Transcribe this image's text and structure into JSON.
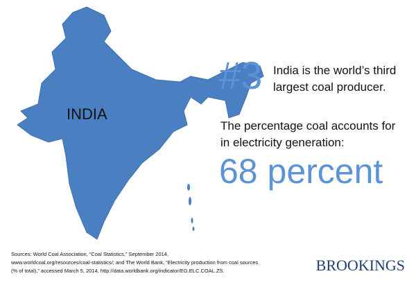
{
  "map_label": "INDIA",
  "rank": "#3",
  "rank_text": [
    "India is the world’s third",
    "largest coal producer."
  ],
  "percentage_text": [
    "The percentage coal accounts for",
    "in electricity generation:"
  ],
  "percentage_value": "68 percent",
  "sources": [
    "Sources: World Coal Association, “Coal Statistics,” September 2014,",
    "www.worldcoal.org/resources/coal-statistics/; and The World Bank, “Electricity production from coal sources",
    "(% of total),” accessed March 5, 2014, http://data.worldbank.org/indicator/EG.ELC.COAL.ZS."
  ],
  "logo": "BROOKINGS"
}
